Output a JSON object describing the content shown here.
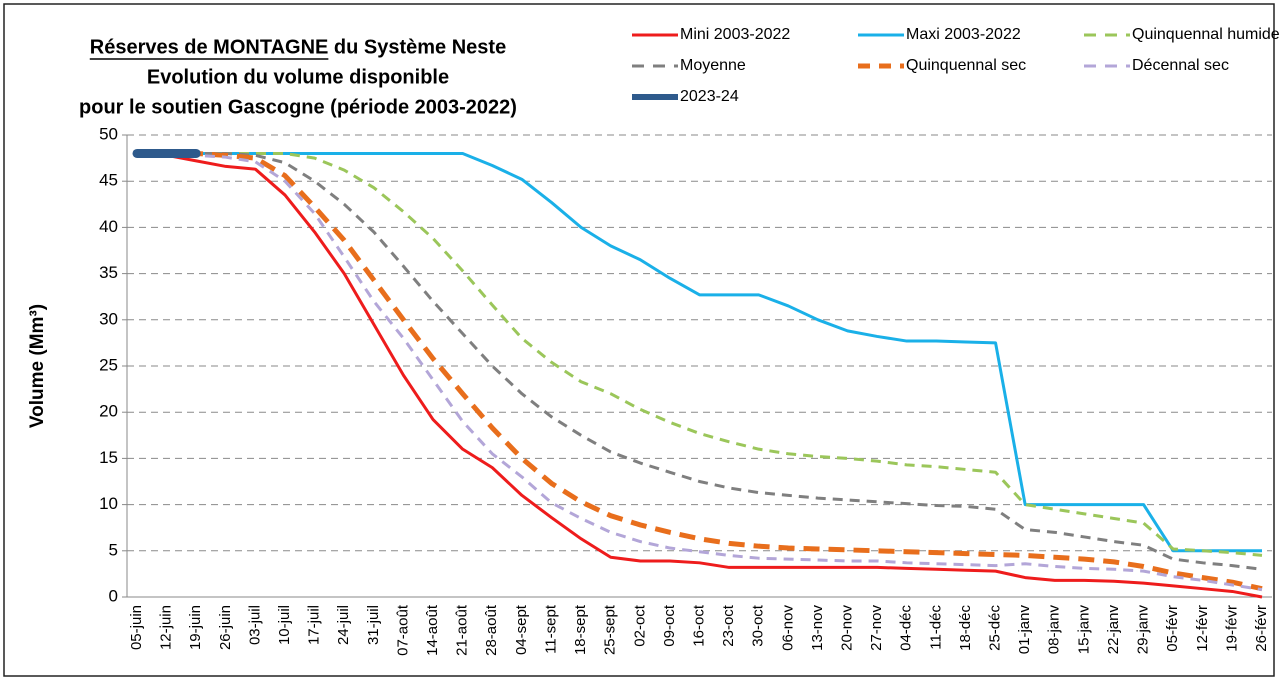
{
  "chart_data": {
    "type": "line",
    "title": [
      "Réserves de MONTAGNE du Système Neste",
      "Evolution du volume disponible",
      "pour le soutien Gascogne (période 2003-2022)"
    ],
    "y_label": "Volume  (Mm³)",
    "categories": [
      "05-juin",
      "12-juin",
      "19-juin",
      "26-juin",
      "03-juil",
      "10-juil",
      "17-juil",
      "24-juil",
      "31-juil",
      "07-août",
      "14-août",
      "21-août",
      "28-août",
      "04-sept",
      "11-sept",
      "18-sept",
      "25-sept",
      "02-oct",
      "09-oct",
      "16-oct",
      "23-oct",
      "30-oct",
      "06-nov",
      "13-nov",
      "20-nov",
      "27-nov",
      "04-déc",
      "11-déc",
      "18-déc",
      "25-déc",
      "01-janv",
      "08-janv",
      "15-janv",
      "22-janv",
      "29-janv",
      "05-févr",
      "12-févr",
      "19-févr",
      "26-févr"
    ],
    "series": [
      {
        "name": "Mini 2003-2022",
        "color": "#ee1c1c",
        "dashed": false,
        "linewidth": 3,
        "values": [
          48,
          47.8,
          47.2,
          46.6,
          46.3,
          43.5,
          39.5,
          35,
          29.5,
          24,
          19.2,
          16,
          14,
          11,
          8.6,
          6.3,
          4.3,
          3.9,
          3.9,
          3.7,
          3.2,
          3.2,
          3.2,
          3.2,
          3.2,
          3.2,
          3.1,
          3.0,
          2.9,
          2.8,
          2.1,
          1.8,
          1.8,
          1.7,
          1.5,
          1.2,
          0.9,
          0.6,
          0
        ]
      },
      {
        "name": "Maxi 2003-2022",
        "color": "#1ab0e8",
        "dashed": false,
        "linewidth": 3,
        "values": [
          48,
          48,
          48,
          48,
          48,
          48,
          48,
          48,
          48,
          48,
          48,
          48,
          46.7,
          45.2,
          42.7,
          40,
          38,
          36.5,
          34.5,
          32.7,
          32.7,
          32.7,
          31.5,
          30,
          28.8,
          28.2,
          27.7,
          27.7,
          27.6,
          27.5,
          10,
          10,
          10,
          10,
          10,
          5,
          5,
          5,
          5
        ]
      },
      {
        "name": "Quinquennal humide",
        "color": "#9bc65a",
        "dashed": true,
        "linewidth": 3,
        "values": [
          48,
          48,
          48,
          48,
          48,
          48,
          47.5,
          46.2,
          44.3,
          41.7,
          38.8,
          35.3,
          31.6,
          28,
          25.4,
          23.3,
          22,
          20.3,
          18.9,
          17.7,
          16.8,
          16,
          15.5,
          15.2,
          15,
          14.7,
          14.3,
          14.1,
          13.8,
          13.5,
          10,
          9.5,
          9,
          8.5,
          8,
          5.2,
          5,
          4.8,
          4.5
        ]
      },
      {
        "name": "Moyenne",
        "color": "#7f7f7f",
        "dashed": true,
        "linewidth": 3,
        "values": [
          48,
          48,
          48,
          48,
          47.8,
          47,
          45,
          42.5,
          39.5,
          35.8,
          32,
          28.5,
          25,
          22,
          19.5,
          17.5,
          15.7,
          14.5,
          13.5,
          12.5,
          11.8,
          11.3,
          11,
          10.7,
          10.5,
          10.3,
          10.1,
          9.9,
          9.8,
          9.5,
          7.3,
          7,
          6.5,
          6,
          5.6,
          4.1,
          3.7,
          3.4,
          3
        ]
      },
      {
        "name": "Quinquennal sec",
        "color": "#e86e1c",
        "dashed": true,
        "linewidth": 5,
        "values": [
          48,
          48,
          48,
          47.8,
          47.5,
          45.6,
          42.2,
          38.6,
          34.3,
          30,
          25.8,
          22,
          18.3,
          15,
          12.3,
          10.3,
          8.8,
          7.8,
          7,
          6.3,
          5.8,
          5.5,
          5.3,
          5.2,
          5.1,
          5,
          4.9,
          4.8,
          4.7,
          4.6,
          4.5,
          4.3,
          4.1,
          3.8,
          3.3,
          2.6,
          2.1,
          1.6,
          0.9
        ]
      },
      {
        "name": "Décennal sec",
        "color": "#b3a6d8",
        "dashed": true,
        "linewidth": 3,
        "values": [
          48,
          48,
          47.8,
          47.6,
          47.1,
          45,
          41.5,
          36.8,
          32,
          28,
          23.5,
          19,
          15.5,
          13,
          10.2,
          8.5,
          7,
          6,
          5.3,
          4.9,
          4.5,
          4.2,
          4.1,
          4,
          3.9,
          3.9,
          3.7,
          3.6,
          3.5,
          3.4,
          3.6,
          3.3,
          3.1,
          3,
          2.8,
          2.2,
          1.8,
          1.3,
          0.8
        ]
      },
      {
        "name": "2023-24",
        "color": "#2e5a8c",
        "dashed": false,
        "linewidth": 9,
        "values": [
          48,
          48,
          48,
          null,
          null,
          null,
          null,
          null,
          null,
          null,
          null,
          null,
          null,
          null,
          null,
          null,
          null,
          null,
          null,
          null,
          null,
          null,
          null,
          null,
          null,
          null,
          null,
          null,
          null,
          null,
          null,
          null,
          null,
          null,
          null,
          null,
          null,
          null,
          null
        ]
      }
    ],
    "ylim": [
      0,
      50
    ],
    "yticks": [
      0,
      5,
      10,
      15,
      20,
      25,
      30,
      35,
      40,
      45,
      50
    ],
    "grid": true,
    "legend": "top-right"
  }
}
